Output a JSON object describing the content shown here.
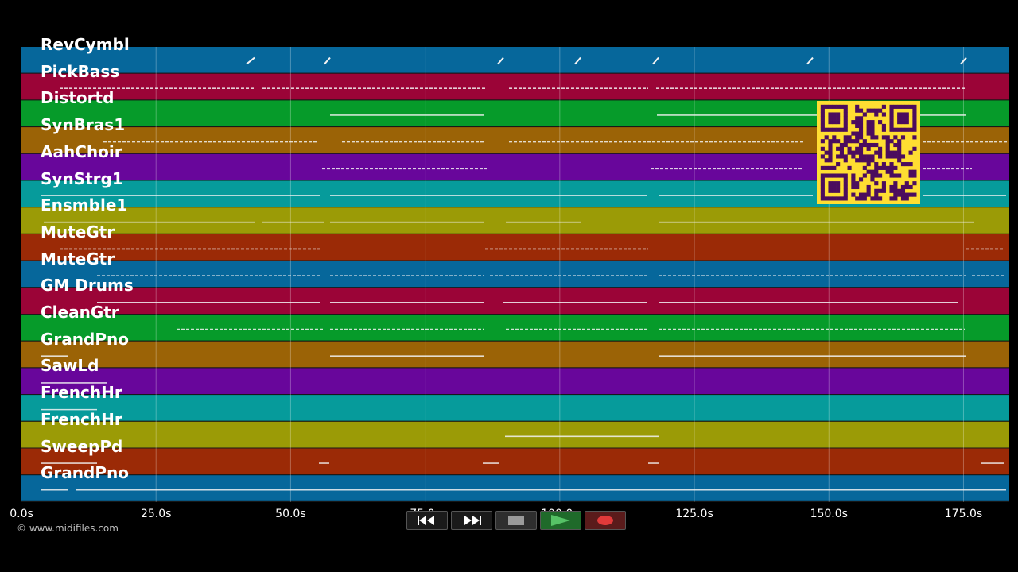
{
  "colors": {
    "background": "#000000",
    "track_colors": [
      "#06679b",
      "#9b0437",
      "#069b2a",
      "#9b6306",
      "#68069b",
      "#069b9b",
      "#9b9b06",
      "#9b2a06"
    ],
    "grid_line": "#7fa7c4",
    "note": "#f2f2f2",
    "qr_fill": "#ffde32",
    "qr_modules": "#4b0c5e"
  },
  "tracks": [
    {
      "label": "RevCymbl"
    },
    {
      "label": "PickBass"
    },
    {
      "label": "Distortd"
    },
    {
      "label": "SynBras1"
    },
    {
      "label": "AahChoir"
    },
    {
      "label": "SynStrg1"
    },
    {
      "label": "Ensmble1"
    },
    {
      "label": "MuteGtr"
    },
    {
      "label": "MuteGtr"
    },
    {
      "label": "GM Drums"
    },
    {
      "label": "CleanGtr"
    },
    {
      "label": "GrandPno"
    },
    {
      "label": "SawLd"
    },
    {
      "label": "FrenchHr"
    },
    {
      "label": "FrenchHr"
    },
    {
      "label": "SweepPd"
    },
    {
      "label": "GrandPno"
    }
  ],
  "timeline": {
    "ticks": [
      "0.0s",
      "25.0s",
      "50.0s",
      "75.0s",
      "100.0s",
      "125.0s",
      "150.0s",
      "175.0s"
    ],
    "tick_values": [
      0,
      25,
      50,
      75,
      100,
      125,
      150,
      175
    ],
    "max_seconds": 183.5
  },
  "transport": {
    "buttons": [
      {
        "name": "rewind-button",
        "icon": "rewind-icon"
      },
      {
        "name": "fast-forward-button",
        "icon": "fast-forward-icon"
      },
      {
        "name": "stop-button",
        "icon": "stop-icon"
      },
      {
        "name": "play-button",
        "icon": "play-icon"
      },
      {
        "name": "record-button",
        "icon": "record-icon"
      }
    ]
  },
  "copyright": "© www.midifiles.com"
}
